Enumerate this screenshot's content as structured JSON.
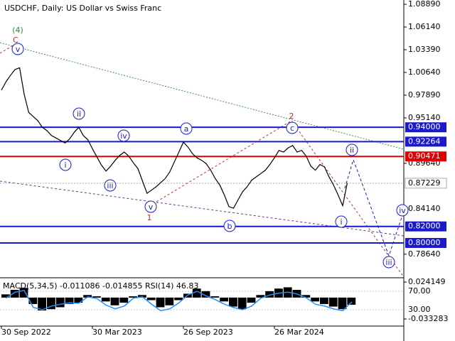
{
  "chart_data": {
    "type": "line",
    "title": "USDCHF, Daily:  US Dollar vs Swiss Franc",
    "categories": [
      "30 Sep 2022",
      null,
      null,
      null,
      null,
      null,
      null,
      null,
      null,
      null,
      null,
      null,
      null,
      null,
      null,
      null,
      null,
      null,
      null,
      null,
      "30 Mar 2023",
      null,
      null,
      null,
      null,
      null,
      null,
      null,
      null,
      null,
      null,
      null,
      null,
      null,
      null,
      null,
      null,
      null,
      null,
      null,
      "26 Sep 2023",
      null,
      null,
      null,
      null,
      null,
      null,
      null,
      null,
      null,
      null,
      null,
      null,
      null,
      null,
      null,
      null,
      null,
      null,
      null,
      "26 Mar 2024",
      null,
      null,
      null,
      null,
      null,
      null,
      null,
      null,
      null,
      null,
      null,
      null,
      null,
      null,
      null,
      null
    ],
    "series": [
      {
        "name": "USDCHF",
        "color": "#000000",
        "values": [
          0.985,
          0.995,
          1.003,
          1.01,
          1.012,
          0.98,
          0.958,
          0.953,
          0.948,
          0.94,
          0.936,
          0.93,
          0.927,
          0.924,
          0.921,
          0.926,
          0.934,
          0.94,
          0.93,
          0.925,
          0.914,
          0.904,
          0.894,
          0.887,
          0.893,
          0.9,
          0.906,
          0.91,
          0.905,
          0.897,
          0.89,
          0.875,
          0.86,
          0.864,
          0.868,
          0.873,
          0.878,
          0.886,
          0.898,
          0.91,
          0.922,
          0.916,
          0.908,
          0.903,
          0.9,
          0.896,
          0.888,
          0.878,
          0.87,
          0.858,
          0.844,
          0.842,
          0.852,
          0.862,
          0.868,
          0.876,
          0.88,
          0.884,
          0.888,
          0.895,
          0.903,
          0.912,
          0.91,
          0.915,
          0.918,
          0.91,
          0.912,
          0.905,
          0.893,
          0.888,
          0.895,
          0.892,
          0.88,
          0.87,
          0.858,
          0.845,
          0.87229
        ]
      }
    ],
    "ylim": [
      0.7587,
      1.0941
    ],
    "yticks": [
      {
        "value": 1.0889,
        "label": "1.08890"
      },
      {
        "value": 1.0614,
        "label": "1.06140"
      },
      {
        "value": 1.0339,
        "label": "1.03390"
      },
      {
        "value": 1.0064,
        "label": "1.00640"
      },
      {
        "value": 0.9789,
        "label": "0.97890"
      },
      {
        "value": 0.9514,
        "label": "0.95140"
      },
      {
        "value": 0.8964,
        "label": "0.89640"
      },
      {
        "value": 0.8414,
        "label": "0.84140"
      },
      {
        "value": 0.7864,
        "label": "0.78640"
      }
    ],
    "current_price": 0.87229,
    "levels": [
      {
        "value": 0.94,
        "label": "0.94000",
        "color": "#1a1acc"
      },
      {
        "value": 0.92264,
        "label": "0.92264",
        "color": "#1a1acc"
      },
      {
        "value": 0.90471,
        "label": "0.90471",
        "color": "#e00000"
      },
      {
        "value": 0.82,
        "label": "0.82000",
        "color": "#1a1acc"
      },
      {
        "value": 0.8,
        "label": "0.80000",
        "color": "#1a1acc"
      }
    ],
    "waves": [
      {
        "label": "(4)",
        "color": "#2e8b2e",
        "circled": false
      },
      {
        "label": "C",
        "color": "#b03020",
        "circled": false
      },
      {
        "label": "v",
        "color": "#1a1acc",
        "circled": true
      },
      {
        "label": "ii",
        "color": "#1a1acc",
        "circled": true
      },
      {
        "label": "i",
        "color": "#1a1acc",
        "circled": true
      },
      {
        "label": "iv",
        "color": "#1a1acc",
        "circled": true
      },
      {
        "label": "iii",
        "color": "#1a1acc",
        "circled": true
      },
      {
        "label": "v",
        "color": "#1a1acc",
        "circled": true
      },
      {
        "label": "1",
        "color": "#b03020",
        "circled": false
      },
      {
        "label": "a",
        "color": "#1a1acc",
        "circled": true
      },
      {
        "label": "b",
        "color": "#1a1acc",
        "circled": true
      },
      {
        "label": "2",
        "color": "#b03020",
        "circled": false
      },
      {
        "label": "c",
        "color": "#1a1acc",
        "circled": true
      },
      {
        "label": "i",
        "color": "#1a1acc",
        "circled": true
      },
      {
        "label": "ii",
        "color": "#1a1acc",
        "circled": true
      },
      {
        "label": "iii",
        "color": "#1a1acc",
        "circled": true
      },
      {
        "label": "iv",
        "color": "#1a1acc",
        "circled": true
      }
    ],
    "indicator": {
      "label": "MACD(5,34,5) -0.011086 -0.014855 RSI(14) 46.83",
      "histogram": {
        "color": "#000000",
        "values": [
          0.005,
          0.012,
          0.015,
          -0.01,
          -0.02,
          -0.018,
          -0.015,
          -0.01,
          -0.008,
          0.004,
          0.002,
          -0.006,
          -0.012,
          -0.008,
          0.002,
          0.004,
          -0.004,
          -0.015,
          -0.012,
          -0.004,
          0.006,
          0.014,
          0.01,
          0.002,
          -0.006,
          -0.014,
          -0.018,
          -0.008,
          0.004,
          0.01,
          0.014,
          0.016,
          0.012,
          0.004,
          -0.006,
          -0.01,
          -0.014,
          -0.018,
          -0.011086
        ]
      },
      "rsi": {
        "color": "#1e90ff",
        "axis": "y2",
        "values": [
          55,
          68,
          72,
          35,
          30,
          38,
          42,
          45,
          44,
          58,
          54,
          40,
          32,
          38,
          55,
          58,
          42,
          28,
          32,
          45,
          62,
          70,
          60,
          52,
          42,
          35,
          30,
          38,
          55,
          62,
          66,
          68,
          64,
          56,
          42,
          38,
          32,
          28,
          46.83
        ]
      },
      "ylim": [
        -0.0432,
        0.0297
      ],
      "yticks": [
        0.024149,
        -0.033283
      ],
      "y2lim": [
        -3.8,
        97.7
      ],
      "y2ticks": [
        {
          "value": 70,
          "label": "70.00"
        },
        {
          "value": 30,
          "label": "30.00"
        }
      ]
    }
  }
}
